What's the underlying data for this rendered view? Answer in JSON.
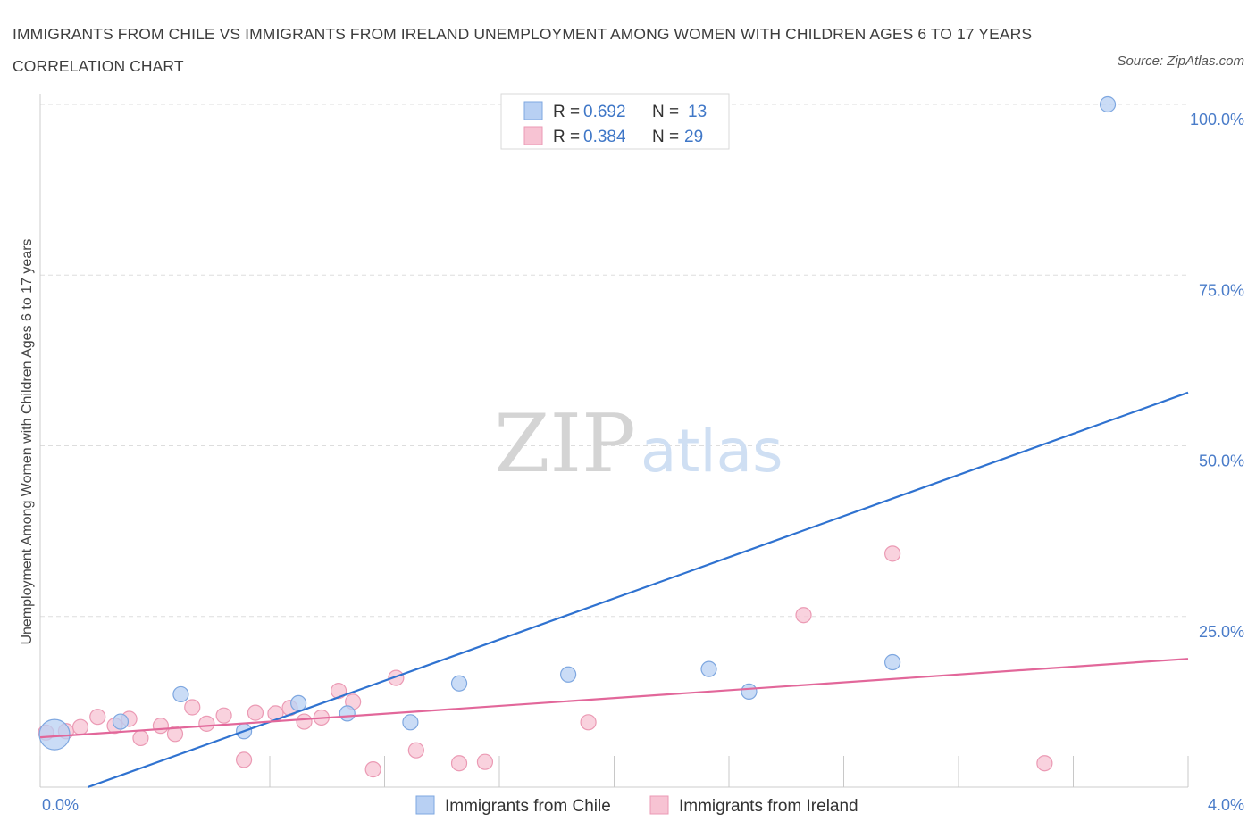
{
  "title": "IMMIGRANTS FROM CHILE VS IMMIGRANTS FROM IRELAND UNEMPLOYMENT AMONG WOMEN WITH CHILDREN AGES 6 TO 17 YEARS CORRELATION CHART",
  "source": "Source: ZipAtlas.com",
  "watermark": {
    "zip": "ZIP",
    "atlas": "atlas"
  },
  "legend": {
    "chile": {
      "r_label": "R =",
      "r_value": "0.692",
      "n_label": "N =",
      "n_value": "13"
    },
    "ireland": {
      "r_label": "R =",
      "r_value": "0.384",
      "n_label": "N =",
      "n_value": "29"
    }
  },
  "colors": {
    "chile_fill": "#b8d0f3",
    "chile_stroke": "#7ea7e0",
    "chile_line": "#2f72d0",
    "ireland_fill": "#f7c3d3",
    "ireland_stroke": "#eb9ab4",
    "ireland_line": "#e2679a",
    "grid": "#dddddd",
    "tick_text": "#4a7cc9"
  },
  "chart_data": {
    "type": "scatter",
    "title": "IMMIGRANTS FROM CHILE VS IMMIGRANTS FROM IRELAND UNEMPLOYMENT AMONG WOMEN WITH CHILDREN AGES 6 TO 17 YEARS CORRELATION CHART",
    "xlabel": "",
    "ylabel": "Unemployment Among Women with Children Ages 6 to 17 years",
    "xlim": [
      0,
      4
    ],
    "ylim": [
      0,
      100
    ],
    "x_tick_labels": [
      "0.0%",
      "4.0%"
    ],
    "y_ticks": [
      25,
      50,
      75,
      100
    ],
    "y_tick_labels": [
      "25.0%",
      "50.0%",
      "75.0%",
      "100.0%"
    ],
    "legend_position": "top-center",
    "series": [
      {
        "name": "Immigrants from Chile",
        "r": 0.692,
        "n": 13,
        "trend": {
          "x": [
            0,
            4
          ],
          "y": [
            -2.5,
            57.8
          ]
        },
        "points": [
          {
            "x": 0.05,
            "y": 7.7,
            "size": "large"
          },
          {
            "x": 0.28,
            "y": 9.6
          },
          {
            "x": 0.49,
            "y": 13.6
          },
          {
            "x": 0.71,
            "y": 8.2
          },
          {
            "x": 0.9,
            "y": 12.3
          },
          {
            "x": 1.07,
            "y": 10.8
          },
          {
            "x": 1.29,
            "y": 9.5
          },
          {
            "x": 1.46,
            "y": 15.2
          },
          {
            "x": 1.84,
            "y": 16.5
          },
          {
            "x": 2.33,
            "y": 17.3
          },
          {
            "x": 2.47,
            "y": 14.0
          },
          {
            "x": 2.97,
            "y": 18.3
          },
          {
            "x": 3.72,
            "y": 100.0
          }
        ]
      },
      {
        "name": "Immigrants from Ireland",
        "r": 0.384,
        "n": 29,
        "trend": {
          "x": [
            0,
            4
          ],
          "y": [
            7.3,
            18.8
          ]
        },
        "points": [
          {
            "x": 0.02,
            "y": 8.0
          },
          {
            "x": 0.09,
            "y": 8.2
          },
          {
            "x": 0.14,
            "y": 8.8
          },
          {
            "x": 0.2,
            "y": 10.3
          },
          {
            "x": 0.26,
            "y": 9.0
          },
          {
            "x": 0.31,
            "y": 10.0
          },
          {
            "x": 0.35,
            "y": 7.2
          },
          {
            "x": 0.42,
            "y": 9.0
          },
          {
            "x": 0.47,
            "y": 7.8
          },
          {
            "x": 0.53,
            "y": 11.7
          },
          {
            "x": 0.58,
            "y": 9.3
          },
          {
            "x": 0.64,
            "y": 10.5
          },
          {
            "x": 0.71,
            "y": 4.0
          },
          {
            "x": 0.75,
            "y": 10.9
          },
          {
            "x": 0.82,
            "y": 10.8
          },
          {
            "x": 0.87,
            "y": 11.6
          },
          {
            "x": 0.92,
            "y": 9.6
          },
          {
            "x": 0.98,
            "y": 10.2
          },
          {
            "x": 1.04,
            "y": 14.1
          },
          {
            "x": 1.09,
            "y": 12.5
          },
          {
            "x": 1.16,
            "y": 2.6
          },
          {
            "x": 1.24,
            "y": 16.0
          },
          {
            "x": 1.31,
            "y": 5.4
          },
          {
            "x": 1.46,
            "y": 3.5
          },
          {
            "x": 1.55,
            "y": 3.7
          },
          {
            "x": 1.91,
            "y": 9.5
          },
          {
            "x": 2.66,
            "y": 25.2
          },
          {
            "x": 2.97,
            "y": 34.2
          },
          {
            "x": 3.5,
            "y": 3.5
          }
        ]
      }
    ]
  },
  "bottom_legend": {
    "chile": "Immigrants from Chile",
    "ireland": "Immigrants from Ireland"
  }
}
